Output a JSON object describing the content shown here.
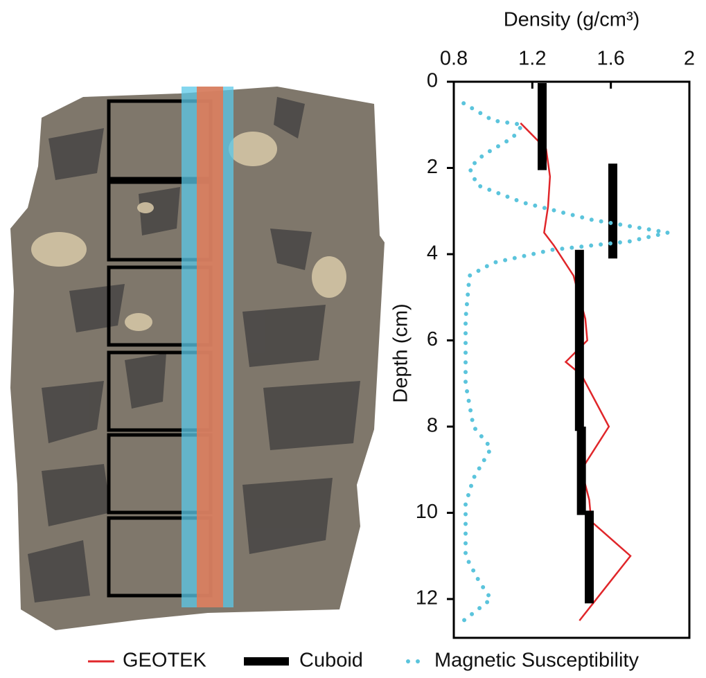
{
  "chart_data": {
    "type": "line",
    "xlabel": "Density (g/cm³)",
    "ylabel": "Depth (cm)",
    "xlim": [
      0.8,
      2
    ],
    "xticks": [
      0.8,
      1.2,
      1.6,
      2
    ],
    "ylim": [
      0,
      12.9
    ],
    "yticks": [
      0,
      2,
      4,
      6,
      8,
      10,
      12
    ],
    "y_inverted": true,
    "x_axis_position": "top",
    "legend": "bottom",
    "series": [
      {
        "name": "GEOTEK",
        "color": "#e0262a",
        "style": "line",
        "x": [
          1.14,
          1.27,
          1.29,
          1.28,
          1.26,
          1.31,
          1.41,
          1.47,
          1.48,
          1.37,
          1.45,
          1.59,
          1.45,
          1.49,
          1.5,
          1.7,
          1.44
        ],
        "y": [
          0.96,
          1.56,
          2.2,
          2.9,
          3.5,
          3.8,
          4.5,
          5.5,
          6.0,
          6.5,
          6.8,
          8.0,
          9.0,
          9.7,
          10.2,
          11.0,
          12.5
        ]
      },
      {
        "name": "Cuboid",
        "color": "#000000",
        "style": "segments",
        "x": [
          1.25,
          1.61,
          1.44,
          1.45,
          1.49
        ],
        "y_top": [
          0.03,
          1.9,
          3.9,
          8.0,
          9.95
        ],
        "y_bottom": [
          2.05,
          4.1,
          8.1,
          10.05,
          12.1
        ]
      },
      {
        "name": "Magnetic Susceptibility",
        "color": "#5bc4dc",
        "style": "dotted",
        "x": [
          0.85,
          1.0,
          1.15,
          1.1,
          0.95,
          0.88,
          0.92,
          1.15,
          1.5,
          1.89,
          1.7,
          1.3,
          1.0,
          0.88,
          0.86,
          0.86,
          0.9,
          0.99,
          0.9,
          0.86,
          0.86,
          0.93,
          0.99,
          0.85
        ],
        "y": [
          0.5,
          0.9,
          1.0,
          1.3,
          1.7,
          2.0,
          2.4,
          2.8,
          3.2,
          3.5,
          3.7,
          3.9,
          4.2,
          4.5,
          5.5,
          7.0,
          8.0,
          8.5,
          9.2,
          9.8,
          11.0,
          11.6,
          12.0,
          12.5
        ]
      }
    ]
  }
}
